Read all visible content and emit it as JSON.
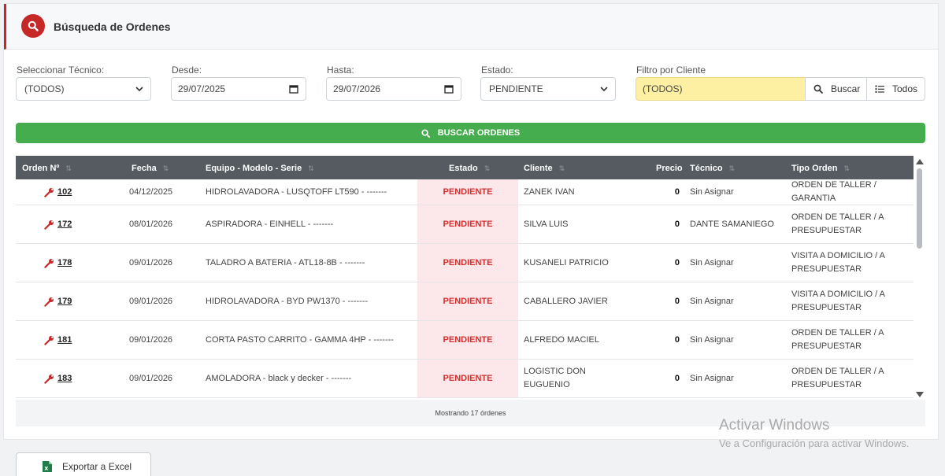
{
  "header": {
    "title": "Búsqueda de Ordenes",
    "icon": "search-icon",
    "accent_color": "#c62828"
  },
  "filters": {
    "tecnico": {
      "label": "Seleccionar Técnico:",
      "value": "(TODOS)"
    },
    "desde": {
      "label": "Desde:",
      "value": "29/07/2025"
    },
    "hasta": {
      "label": "Hasta:",
      "value": "29/07/2026"
    },
    "estado": {
      "label": "Estado:",
      "value": "PENDIENTE"
    },
    "cliente": {
      "label": "Filtro por Cliente",
      "value": "(TODOS)",
      "buscar_label": "Buscar",
      "todos_label": "Todos"
    }
  },
  "search_button": {
    "label": "BUSCAR ORDENES",
    "color": "#46ad4f"
  },
  "table": {
    "columns": [
      "Orden Nº",
      "Fecha",
      "Equipo - Modelo - Serie",
      "Estado",
      "Cliente",
      "Precio",
      "Técnico",
      "Tipo Orden"
    ],
    "rows": [
      {
        "orden": "102",
        "fecha": "04/12/2025",
        "equipo": "HIDROLAVADORA - LUSQTOFF LT590 - -------",
        "estado": "PENDIENTE",
        "cliente": "ZANEK IVAN",
        "precio": "0",
        "tecnico": "Sin Asignar",
        "tipo": "ORDEN DE TALLER / GARANTIA"
      },
      {
        "orden": "172",
        "fecha": "08/01/2026",
        "equipo": "ASPIRADORA - EINHELL - -------",
        "estado": "PENDIENTE",
        "cliente": "SILVA LUIS",
        "precio": "0",
        "tecnico": "DANTE SAMANIEGO",
        "tipo": "ORDEN DE TALLER / A PRESUPUESTAR"
      },
      {
        "orden": "178",
        "fecha": "09/01/2026",
        "equipo": "TALADRO A BATERIA - ATL18-8B - -------",
        "estado": "PENDIENTE",
        "cliente": "KUSANELI PATRICIO",
        "precio": "0",
        "tecnico": "Sin Asignar",
        "tipo": "VISITA A DOMICILIO / A PRESUPUESTAR"
      },
      {
        "orden": "179",
        "fecha": "09/01/2026",
        "equipo": "HIDROLAVADORA - BYD PW1370 - -------",
        "estado": "PENDIENTE",
        "cliente": "CABALLERO JAVIER",
        "precio": "0",
        "tecnico": "Sin Asignar",
        "tipo": "VISITA A DOMICILIO / A PRESUPUESTAR"
      },
      {
        "orden": "181",
        "fecha": "09/01/2026",
        "equipo": "CORTA PASTO CARRITO - GAMMA 4HP - -------",
        "estado": "PENDIENTE",
        "cliente": "ALFREDO MACIEL",
        "precio": "0",
        "tecnico": "Sin Asignar",
        "tipo": "ORDEN DE TALLER / A PRESUPUESTAR"
      },
      {
        "orden": "183",
        "fecha": "09/01/2026",
        "equipo": "AMOLADORA - black y decker - -------",
        "estado": "PENDIENTE",
        "cliente": "LOGISTIC DON EUGUENIO",
        "precio": "0",
        "tecnico": "Sin Asignar",
        "tipo": "ORDEN DE TALLER / A PRESUPUESTAR"
      }
    ],
    "footer": "Mostrando 17 órdenes",
    "pending_color": "#d32f2f"
  },
  "export_button": {
    "label": "Exportar a Excel",
    "icon": "excel-icon"
  },
  "watermark": {
    "title": "Activar Windows",
    "subtitle": "Ve a Configuración para activar Windows."
  }
}
